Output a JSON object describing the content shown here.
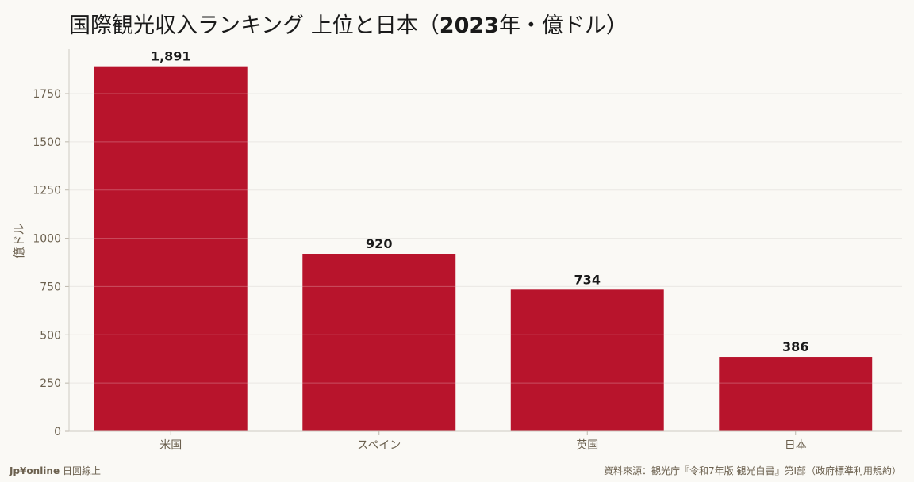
{
  "title": {
    "pre": "国際観光収入ランキング 上位と日本（",
    "mid": "2023",
    "post": "年・億ドル）"
  },
  "colors": {
    "bar": "#b8142c",
    "background": "#faf9f5",
    "grid": "#e4e2dc",
    "axis_text": "#6b604e"
  },
  "chart_data": {
    "type": "bar",
    "title": "国際観光収入ランキング 上位と日本（2023年・億ドル）",
    "categories": [
      "米国",
      "スペイン",
      "英国",
      "日本"
    ],
    "values": [
      1891,
      920,
      734,
      386
    ],
    "data_labels": [
      "1,891",
      "920",
      "734",
      "386"
    ],
    "ylabel": "億ドル",
    "ylim": [
      0,
      1980
    ],
    "yticks": [
      0,
      250,
      500,
      750,
      1000,
      1250,
      1500,
      1750
    ],
    "grid": true
  },
  "footer": {
    "brand_name": "Jp¥online",
    "brand_sub": "日圓線上",
    "source": "資料來源：観光庁『令和7年版 観光白書』第Ⅰ部（政府標準利用規約）"
  }
}
